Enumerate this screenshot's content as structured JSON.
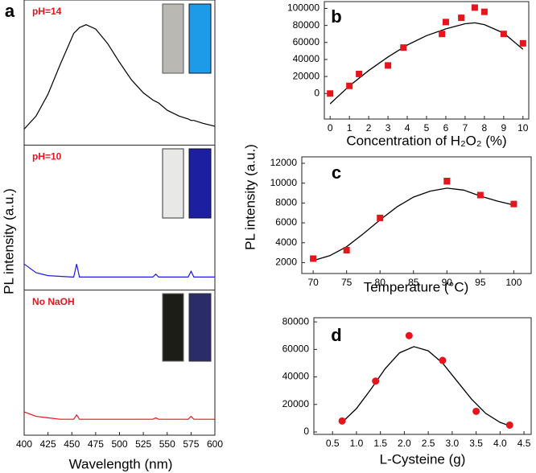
{
  "chart_data": [
    {
      "type": "line",
      "panel_label": "a",
      "xlabel": "Wavelength (nm)",
      "ylabel": "PL intensity (a.u.)",
      "xlim": [
        400,
        600
      ],
      "xticks": [
        400,
        425,
        450,
        475,
        500,
        525,
        550,
        575,
        600
      ],
      "ylim": [
        0,
        1
      ],
      "x": [
        400,
        412.5,
        425,
        437.5,
        450,
        452,
        455,
        458,
        465,
        475,
        487.5,
        500,
        512.5,
        525,
        535,
        538,
        541,
        550,
        562.5,
        572,
        575,
        578,
        587.5,
        600
      ],
      "series": [
        {
          "name": "pH=14",
          "color": "#000000",
          "values": [
            0.11,
            0.2,
            0.35,
            0.55,
            0.74,
            0.77,
            0.79,
            0.81,
            0.83,
            0.8,
            0.7,
            0.57,
            0.45,
            0.36,
            0.31,
            0.3,
            0.29,
            0.24,
            0.2,
            0.18,
            0.17,
            0.17,
            0.15,
            0.13
          ]
        },
        {
          "name": "pH=10",
          "color": "#1a1ae6",
          "values": [
            0.18,
            0.12,
            0.1,
            0.095,
            0.09,
            0.09,
            0.18,
            0.09,
            0.09,
            0.09,
            0.09,
            0.09,
            0.09,
            0.09,
            0.09,
            0.11,
            0.09,
            0.09,
            0.09,
            0.09,
            0.13,
            0.09,
            0.09,
            0.09
          ]
        },
        {
          "name": "No  NaOH",
          "color": "#e8141b",
          "values": [
            0.16,
            0.13,
            0.12,
            0.11,
            0.11,
            0.11,
            0.14,
            0.11,
            0.11,
            0.11,
            0.11,
            0.11,
            0.11,
            0.11,
            0.11,
            0.12,
            0.11,
            0.11,
            0.11,
            0.11,
            0.13,
            0.11,
            0.11,
            0.11
          ]
        }
      ]
    },
    {
      "type": "scatter",
      "panel_label": "b",
      "xlabel": "Concentration of H₂O₂ (%)",
      "xlim": [
        -0.3,
        10.3
      ],
      "xticks": [
        0,
        1,
        2,
        3,
        4,
        5,
        6,
        7,
        8,
        9,
        10
      ],
      "ylim": [
        -30000,
        108000
      ],
      "yticks": [
        0,
        20000,
        40000,
        60000,
        80000,
        100000
      ],
      "marker": "square",
      "color": "#e8141b",
      "fit_color": "#000000",
      "x": [
        0,
        1,
        1.5,
        3,
        3.8,
        5.8,
        6,
        6.8,
        7.5,
        8,
        9,
        10
      ],
      "values": [
        0,
        9000,
        23000,
        33000,
        54000,
        70000,
        84000,
        89000,
        101000,
        96000,
        70000,
        59000
      ],
      "fit": {
        "x": [
          0,
          1,
          2,
          3,
          4,
          5,
          6,
          7,
          7.5,
          8,
          9,
          10
        ],
        "values": [
          -12000,
          9000,
          27000,
          43000,
          57000,
          68000,
          76000,
          82000,
          83000,
          81000,
          71000,
          52000
        ]
      }
    },
    {
      "type": "scatter",
      "panel_label": "c",
      "xlabel": "Temperature (°C)",
      "ylabel": "PL intensity (a.u.)",
      "xlim": [
        68.3,
        102.6
      ],
      "xticks": [
        70,
        75,
        80,
        85,
        90,
        95,
        100
      ],
      "ylim": [
        900,
        12650
      ],
      "yticks": [
        2000,
        4000,
        6000,
        8000,
        10000,
        12000
      ],
      "marker": "square",
      "color": "#e8141b",
      "fit_color": "#000000",
      "x": [
        70,
        75,
        80,
        90,
        95,
        100
      ],
      "values": [
        2400,
        3250,
        6500,
        10200,
        8800,
        7900
      ],
      "errors": [
        null,
        null,
        null,
        300,
        null,
        null
      ],
      "fit": {
        "x": [
          70,
          72.5,
          75,
          77.5,
          80,
          82.5,
          85,
          87.5,
          90,
          92.5,
          95,
          97.5,
          100
        ],
        "values": [
          2200,
          2700,
          3600,
          4900,
          6300,
          7600,
          8600,
          9200,
          9500,
          9300,
          8700,
          8200,
          7800
        ]
      }
    },
    {
      "type": "scatter",
      "panel_label": "d",
      "xlabel": "L-Cysteine (g)",
      "xlim": [
        0.11,
        4.65
      ],
      "xticks": [
        0.5,
        {
          "value": 1,
          "label": "1.0"
        },
        1.5,
        {
          "value": 2,
          "label": "2.0"
        },
        2.5,
        {
          "value": 3,
          "label": "3.0"
        },
        3.5,
        {
          "value": 4,
          "label": "4.0"
        },
        4.5
      ],
      "ylim": [
        -1750,
        83000
      ],
      "yticks": [
        0,
        20000,
        40000,
        60000,
        80000
      ],
      "marker": "circle",
      "color": "#e8141b",
      "fit_color": "#000000",
      "x": [
        0.7,
        1.4,
        2.1,
        2.8,
        3.5,
        4.2
      ],
      "values": [
        8000,
        37000,
        70000,
        52000,
        15000,
        5000
      ],
      "fit": {
        "x": [
          0.7,
          1.0,
          1.3,
          1.6,
          1.9,
          2.2,
          2.5,
          2.8,
          3.1,
          3.4,
          3.7,
          4.0,
          4.2
        ],
        "values": [
          7000,
          17000,
          31000,
          46000,
          57500,
          62000,
          59000,
          50000,
          37000,
          24000,
          13500,
          7000,
          4500
        ]
      }
    }
  ]
}
